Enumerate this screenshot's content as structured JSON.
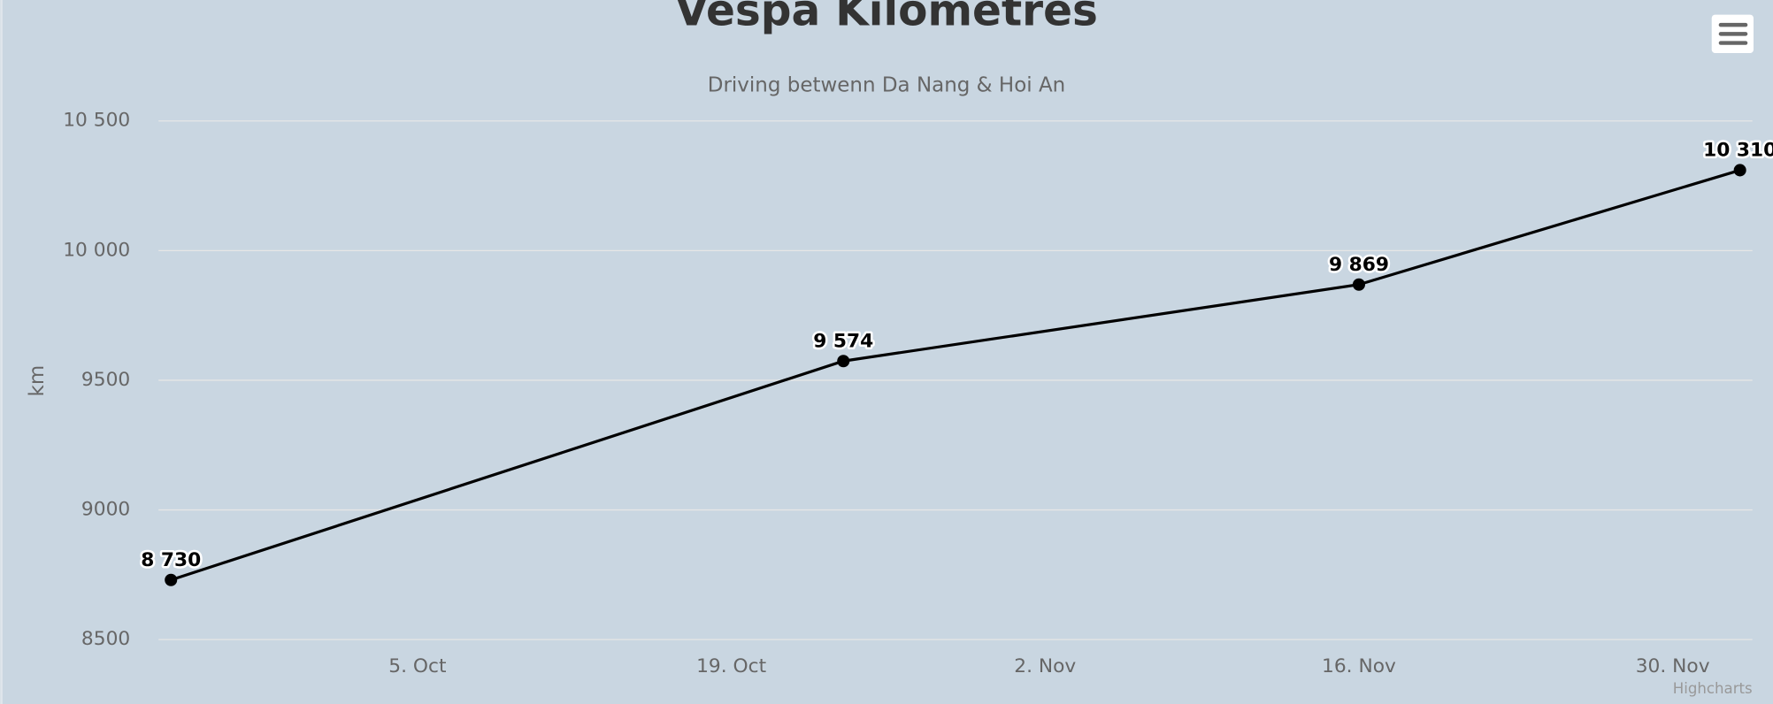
{
  "chart_data": {
    "type": "line",
    "title": "Vespa Kilometres",
    "subtitle": "Driving betwenn Da Nang & Hoi An",
    "y_label": "km",
    "credits": "Highcharts",
    "x": [
      "24. Sep",
      "24. Oct",
      "16. Nov",
      "3. Dec"
    ],
    "series": [
      {
        "name": "km",
        "color": "#000000",
        "values": [
          8730,
          9574,
          9869,
          10310
        ],
        "value_labels": [
          "8 730",
          "9 574",
          "9 869",
          "10 310"
        ]
      }
    ],
    "xlim": [
      "24. Sep",
      "3. Dec"
    ],
    "xticks": [
      "5. Oct",
      "19. Oct",
      "2. Nov",
      "16. Nov",
      "30. Nov"
    ],
    "ylim": [
      8500,
      10500
    ],
    "yticks": [
      8500,
      9000,
      9500,
      {
        "value": 10000,
        "label": "10 000"
      },
      {
        "value": 10500,
        "label": "10 500"
      }
    ],
    "grid": true
  }
}
